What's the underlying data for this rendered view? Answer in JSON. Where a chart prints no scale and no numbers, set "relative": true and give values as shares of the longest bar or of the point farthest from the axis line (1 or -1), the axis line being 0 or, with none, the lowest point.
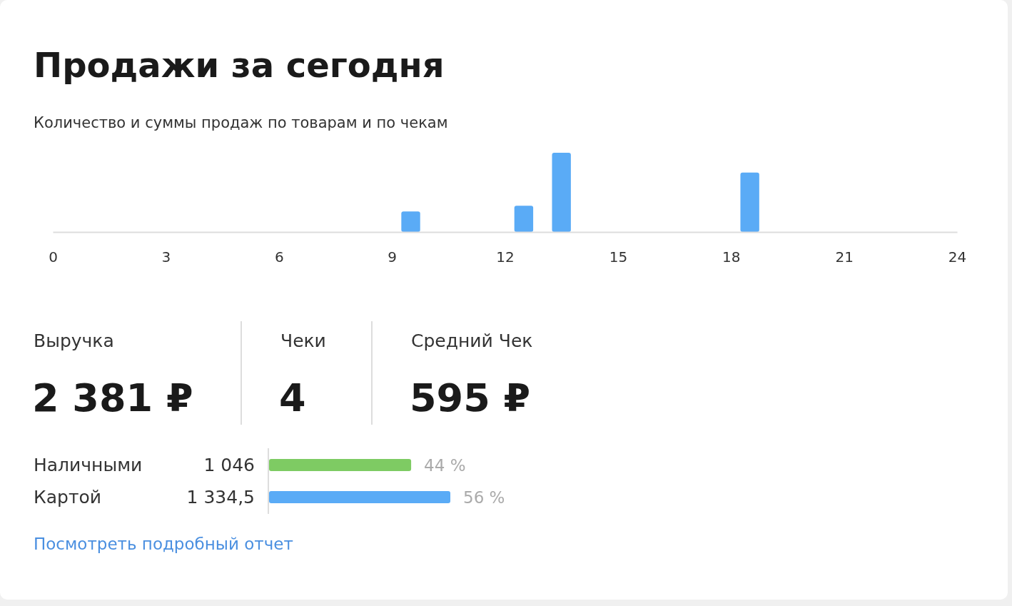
{
  "chart_data": [
    {
      "type": "bar",
      "title": "Продажи за сегодня",
      "subtitle": "Количество и суммы продаж по товарам и по чекам",
      "x": [
        9.5,
        12.5,
        13.5,
        18.5
      ],
      "values": [
        0.26,
        0.33,
        1,
        0.75
      ],
      "color": "#5aabf6",
      "relative": true,
      "xlim": [
        0,
        24
      ],
      "xticks": [
        0,
        3,
        6,
        9,
        12,
        15,
        18,
        21,
        24
      ]
    },
    {
      "type": "other",
      "categories": [
        "Выручка",
        "Чеки",
        "Средний Чек"
      ],
      "value_labels": [
        "2 381 ₽",
        "4",
        "595 ₽"
      ]
    },
    {
      "type": "bar",
      "orientation": "horizontal",
      "categories": [
        "Наличными",
        "Картой"
      ],
      "values": [
        1046,
        1334.5
      ],
      "colors": [
        "#7ecb63",
        "#5aabf6"
      ],
      "value_labels": [
        "1 046",
        "1 334,5"
      ],
      "annotations": [
        "44 %",
        "56 %",
        "Посмотреть подробный отчет"
      ]
    }
  ]
}
